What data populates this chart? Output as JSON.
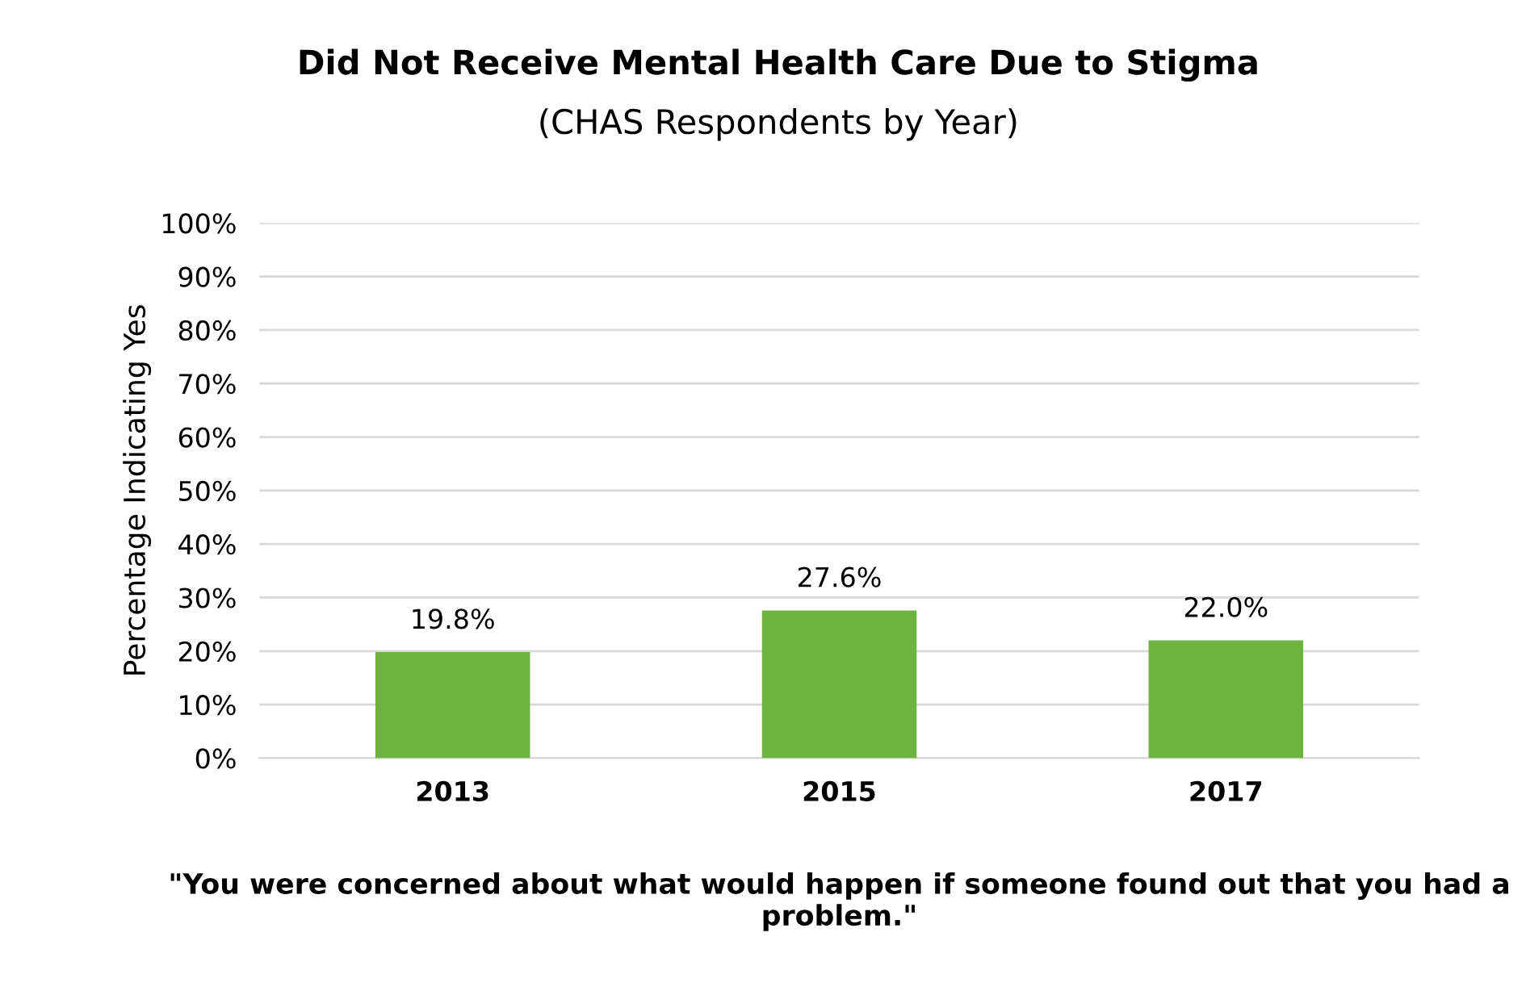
{
  "chart_data": {
    "type": "bar",
    "title": "Did Not Receive Mental Health Care Due to Stigma",
    "subtitle": "(CHAS Respondents by Year)",
    "ylabel": "Percentage Indicating Yes",
    "categories": [
      "2013",
      "2015",
      "2017"
    ],
    "values": [
      19.8,
      27.6,
      22.0
    ],
    "value_labels": [
      "19.8%",
      "27.6%",
      "22.0%"
    ],
    "color": "#6db33f",
    "ylim": [
      0,
      100
    ],
    "yticks": [
      {
        "value": 0,
        "label": "0%"
      },
      {
        "value": 10,
        "label": "10%"
      },
      {
        "value": 20,
        "label": "20%"
      },
      {
        "value": 30,
        "label": "30%"
      },
      {
        "value": 40,
        "label": "40%"
      },
      {
        "value": 50,
        "label": "50%"
      },
      {
        "value": 60,
        "label": "60%"
      },
      {
        "value": 70,
        "label": "70%"
      },
      {
        "value": 80,
        "label": "80%"
      },
      {
        "value": 90,
        "label": "90%"
      },
      {
        "value": 100,
        "label": "100%"
      }
    ],
    "grid": "y",
    "legend": false,
    "annotations": [
      "\"You were concerned about what would happen if someone found out that you had a problem.\""
    ]
  }
}
